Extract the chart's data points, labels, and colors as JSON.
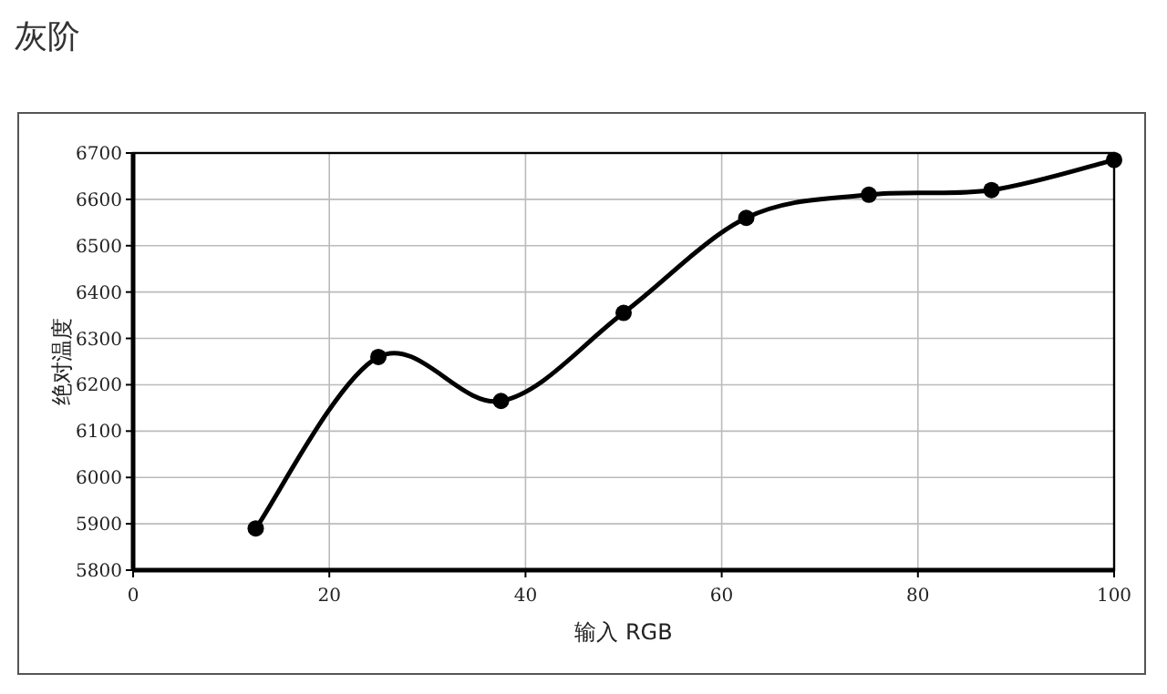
{
  "chart_data": {
    "type": "line",
    "title": "灰阶",
    "xlabel": "输入 RGB",
    "ylabel": "绝对温度",
    "x": [
      12.5,
      25,
      37.5,
      50,
      62.5,
      75,
      87.5,
      100
    ],
    "series": [
      {
        "color": "#000000",
        "values": [
          5890,
          6260,
          6165,
          6355,
          6560,
          6610,
          6620,
          6685
        ]
      }
    ],
    "xlim": [
      0,
      100
    ],
    "xticks": [
      0,
      20,
      40,
      60,
      80,
      100
    ],
    "ylim": [
      5800,
      6700
    ],
    "yticks": [
      5800,
      5900,
      6000,
      6100,
      6200,
      6300,
      6400,
      6500,
      6600,
      6700
    ],
    "grid": true,
    "marker": "circle",
    "line_style": "solid"
  }
}
